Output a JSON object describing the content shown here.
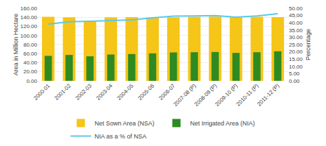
{
  "chart_data": {
    "type": "bar",
    "categories": [
      "2000-01",
      "2001-02",
      "2002-03",
      "2003-04",
      "2004-05",
      "2005-06",
      "2006-07",
      "2007-08 (P)",
      "2008-09 (P)",
      "2009-10 (P)",
      "2010-11 (P)",
      "2011-12 (P)"
    ],
    "series": [
      {
        "name": "Net Sown Area (NSA)",
        "type": "bar",
        "color": "#F5C518",
        "values": [
          141.0,
          140.0,
          131.5,
          140.0,
          140.5,
          139.5,
          140.0,
          141.0,
          141.5,
          140.0,
          141.0,
          140.5
        ]
      },
      {
        "name": "Net Irrigated Area (NIA)",
        "type": "bar",
        "color": "#2E8B22",
        "values": [
          55.0,
          57.0,
          54.0,
          58.0,
          59.0,
          60.5,
          62.5,
          63.0,
          63.5,
          61.5,
          63.0,
          65.0
        ]
      },
      {
        "name": "NIA as a % of NSA",
        "type": "line",
        "color": "#5BC8E8",
        "axis": "y2",
        "values": [
          39.0,
          40.7,
          41.0,
          41.4,
          42.0,
          43.4,
          44.6,
          44.7,
          44.9,
          43.9,
          44.7,
          46.2
        ]
      }
    ],
    "ylabel": "Area in Million Hectare",
    "y2label": "Percentage",
    "ylim": [
      0,
      160
    ],
    "yticks": [
      {
        "value": 0,
        "label": "0.00"
      },
      {
        "value": 20,
        "label": "20.00"
      },
      {
        "value": 40,
        "label": "40.00"
      },
      {
        "value": 60,
        "label": "60.00"
      },
      {
        "value": 80,
        "label": "80.00"
      },
      {
        "value": 100,
        "label": "100.00"
      },
      {
        "value": 120,
        "label": "120.00"
      },
      {
        "value": 140,
        "label": "140.00"
      },
      {
        "value": 160,
        "label": "160.00"
      }
    ],
    "y2lim": [
      0,
      50
    ],
    "y2ticks": [
      {
        "value": 0,
        "label": "0.00"
      },
      {
        "value": 5,
        "label": "5.00"
      },
      {
        "value": 10,
        "label": "10.00"
      },
      {
        "value": 15,
        "label": "15.00"
      },
      {
        "value": 20,
        "label": "20.00"
      },
      {
        "value": 25,
        "label": "25.00"
      },
      {
        "value": 30,
        "label": "30.00"
      },
      {
        "value": 35,
        "label": "35.00"
      },
      {
        "value": 40,
        "label": "40.00"
      },
      {
        "value": 45,
        "label": "45.00"
      },
      {
        "value": 50,
        "label": "50.00"
      }
    ],
    "grid": true,
    "legend": "bottom"
  }
}
